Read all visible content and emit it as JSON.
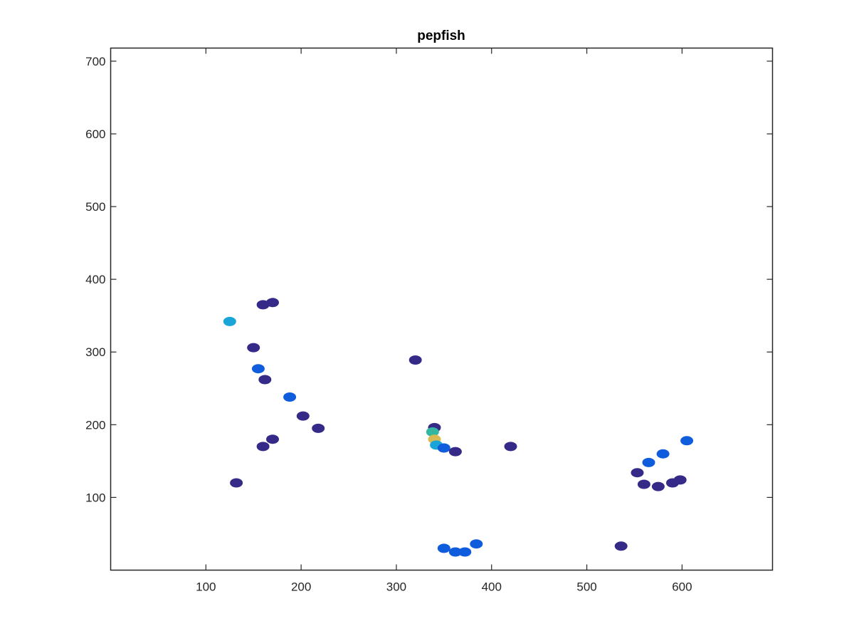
{
  "chart_data": {
    "type": "scatter",
    "title": "pepfish",
    "xlabel": "",
    "ylabel": "",
    "xlim": [
      0,
      695
    ],
    "ylim": [
      0,
      718
    ],
    "xticks": [
      100,
      200,
      300,
      400,
      500,
      600
    ],
    "yticks": [
      100,
      200,
      300,
      400,
      500,
      600,
      700
    ],
    "grid": false,
    "colormap": "parula",
    "colors": {
      "background": "#ffffff",
      "axes": "#262626",
      "low": "#352a87",
      "mid_blue": "#0f5cdd",
      "light_blue": "#1aa5d8",
      "teal": "#33b7a0",
      "yellow": "#d8ba55"
    },
    "series": [
      {
        "points": [
          {
            "x": 125,
            "y": 342,
            "v": 0.25
          },
          {
            "x": 160,
            "y": 365,
            "v": 0.05
          },
          {
            "x": 170,
            "y": 368,
            "v": 0.02
          },
          {
            "x": 150,
            "y": 306,
            "v": 0.02
          },
          {
            "x": 155,
            "y": 277,
            "v": 0.15
          },
          {
            "x": 162,
            "y": 262,
            "v": 0.03
          },
          {
            "x": 188,
            "y": 238,
            "v": 0.08
          },
          {
            "x": 202,
            "y": 212,
            "v": 0.03
          },
          {
            "x": 218,
            "y": 195,
            "v": 0.02
          },
          {
            "x": 160,
            "y": 170,
            "v": 0.02
          },
          {
            "x": 170,
            "y": 180,
            "v": 0.02
          },
          {
            "x": 132,
            "y": 120,
            "v": 0.02
          },
          {
            "x": 320,
            "y": 289,
            "v": 0.02
          },
          {
            "x": 340,
            "y": 196,
            "v": 0.05
          },
          {
            "x": 338,
            "y": 190,
            "v": 0.35
          },
          {
            "x": 340,
            "y": 180,
            "v": 0.55
          },
          {
            "x": 342,
            "y": 172,
            "v": 0.28
          },
          {
            "x": 350,
            "y": 168,
            "v": 0.08
          },
          {
            "x": 362,
            "y": 163,
            "v": 0.02
          },
          {
            "x": 420,
            "y": 170,
            "v": 0.02
          },
          {
            "x": 350,
            "y": 30,
            "v": 0.15
          },
          {
            "x": 362,
            "y": 25,
            "v": 0.12
          },
          {
            "x": 372,
            "y": 25,
            "v": 0.16
          },
          {
            "x": 384,
            "y": 36,
            "v": 0.08
          },
          {
            "x": 536,
            "y": 33,
            "v": 0.02
          },
          {
            "x": 553,
            "y": 134,
            "v": 0.02
          },
          {
            "x": 565,
            "y": 148,
            "v": 0.1
          },
          {
            "x": 580,
            "y": 160,
            "v": 0.1
          },
          {
            "x": 605,
            "y": 178,
            "v": 0.08
          },
          {
            "x": 560,
            "y": 118,
            "v": 0.02
          },
          {
            "x": 575,
            "y": 115,
            "v": 0.02
          },
          {
            "x": 590,
            "y": 120,
            "v": 0.02
          },
          {
            "x": 598,
            "y": 124,
            "v": 0.02
          }
        ]
      }
    ]
  }
}
